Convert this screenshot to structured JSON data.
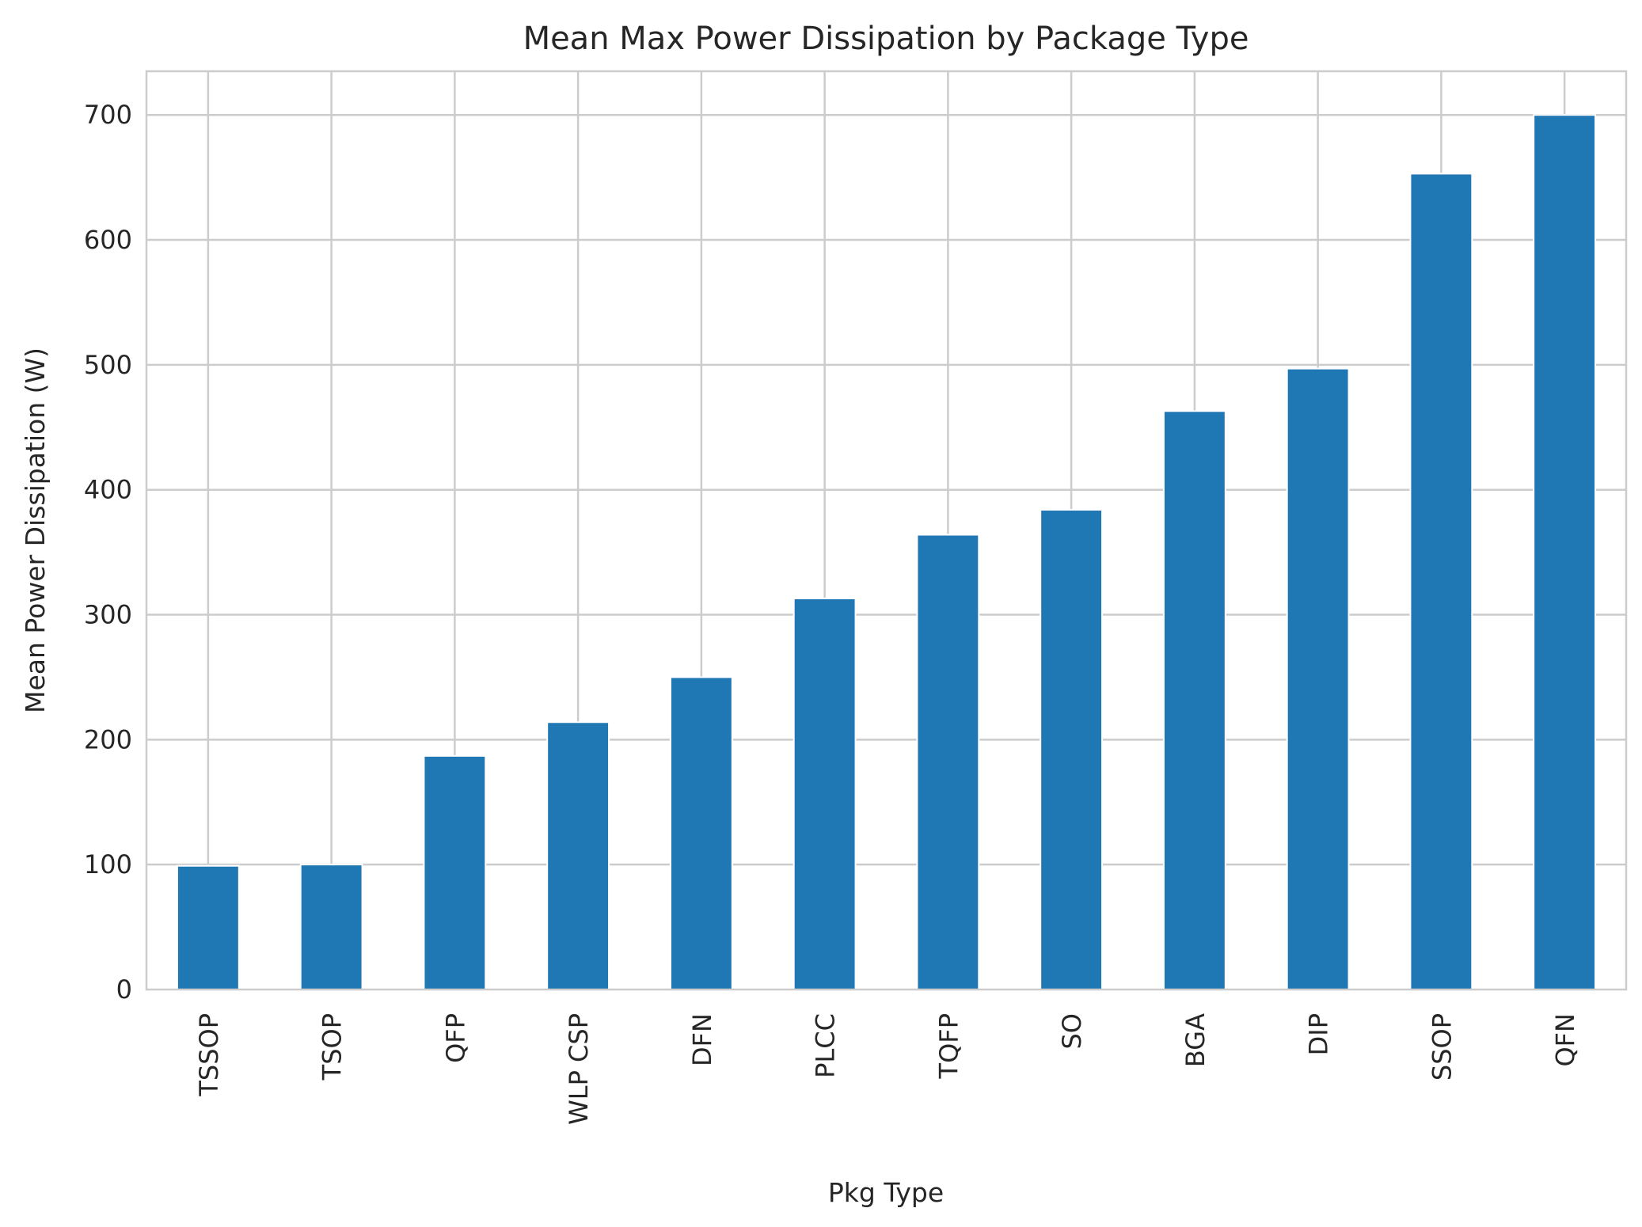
{
  "chart_data": {
    "type": "bar",
    "title": "Mean Max Power Dissipation by Package Type",
    "xlabel": "Pkg Type",
    "ylabel": "Mean Power Dissipation (W)",
    "categories": [
      "TSSOP",
      "TSOP",
      "QFP",
      "WLP CSP",
      "DFN",
      "PLCC",
      "TQFP",
      "SO",
      "BGA",
      "DIP",
      "SSOP",
      "QFN"
    ],
    "values": [
      99,
      100,
      187,
      214,
      250,
      313,
      364,
      384,
      463,
      497,
      653,
      700
    ],
    "ylim": [
      0,
      735
    ],
    "yticks": [
      0,
      100,
      200,
      300,
      400,
      500,
      600,
      700
    ],
    "grid": true,
    "bar_color": "#1f77b4",
    "grid_color": "#cccccc",
    "spine_color": "#cccccc"
  }
}
